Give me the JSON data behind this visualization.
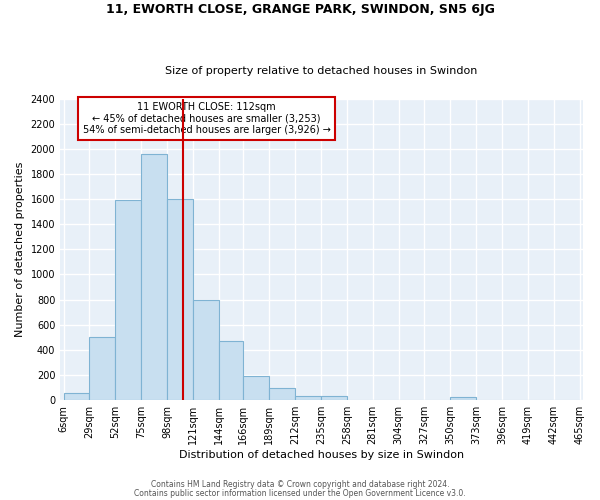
{
  "title1": "11, EWORTH CLOSE, GRANGE PARK, SWINDON, SN5 6JG",
  "title2": "Size of property relative to detached houses in Swindon",
  "xlabel": "Distribution of detached houses by size in Swindon",
  "ylabel": "Number of detached properties",
  "footer1": "Contains HM Land Registry data © Crown copyright and database right 2024.",
  "footer2": "Contains public sector information licensed under the Open Government Licence v3.0.",
  "annotation_line1": "11 EWORTH CLOSE: 112sqm",
  "annotation_line2": "← 45% of detached houses are smaller (3,253)",
  "annotation_line3": "54% of semi-detached houses are larger (3,926) →",
  "bar_edges": [
    6,
    29,
    52,
    75,
    98,
    121,
    144,
    166,
    189,
    212,
    235,
    258,
    281,
    304,
    327,
    350,
    373,
    396,
    419,
    442,
    465
  ],
  "bar_heights": [
    60,
    500,
    1590,
    1960,
    1600,
    800,
    470,
    190,
    95,
    35,
    30,
    0,
    0,
    0,
    0,
    25,
    0,
    0,
    0,
    0
  ],
  "bar_color": "#c8dff0",
  "bar_edgecolor": "#7fb3d3",
  "vline_x": 112,
  "vline_color": "#cc0000",
  "ylim": [
    0,
    2400
  ],
  "yticks": [
    0,
    200,
    400,
    600,
    800,
    1000,
    1200,
    1400,
    1600,
    1800,
    2000,
    2200,
    2400
  ],
  "bg_color": "#e8f0f8",
  "grid_color": "#ffffff",
  "annotation_box_color": "#cc0000"
}
